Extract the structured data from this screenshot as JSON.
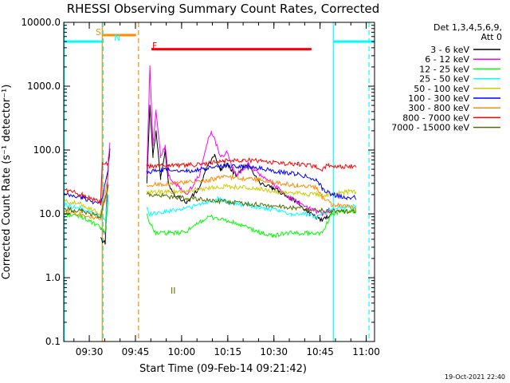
{
  "chart_data": {
    "type": "line",
    "title": "RHESSI Observing Summary Count Rates, Corrected",
    "xlabel": "Start Time (09-Feb-14 09:21:42)",
    "ylabel": "Corrected Count Rate (s⁻¹ detector⁻¹)",
    "yscale": "log",
    "ylim": [
      0.1,
      10000
    ],
    "xlim_minutes": [
      0,
      101
    ],
    "xticks": [
      {
        "t": 8.3,
        "label": "09:30"
      },
      {
        "t": 23.3,
        "label": "09:45"
      },
      {
        "t": 38.3,
        "label": "10:00"
      },
      {
        "t": 53.3,
        "label": "10:15"
      },
      {
        "t": 68.3,
        "label": "10:30"
      },
      {
        "t": 83.3,
        "label": "10:45"
      },
      {
        "t": 98.3,
        "label": "11:00"
      }
    ],
    "yticks": [
      {
        "v": 0.1,
        "label": "0.1"
      },
      {
        "v": 1,
        "label": "1.0"
      },
      {
        "v": 10,
        "label": "10.0"
      },
      {
        "v": 100,
        "label": "100.0"
      },
      {
        "v": 1000,
        "label": "1000.0"
      },
      {
        "v": 10000,
        "label": "10000.0"
      }
    ],
    "legend_header": [
      "Det 1,3,4,5,6,9,",
      "Att 0"
    ],
    "series": [
      {
        "name": "3 - 6 keV",
        "color": "#000000",
        "pts": [
          [
            12,
            4
          ],
          [
            13.5,
            3.5
          ],
          [
            14.5,
            60
          ],
          [
            15,
            110
          ],
          [
            27,
            30
          ],
          [
            28,
            500
          ],
          [
            29,
            80
          ],
          [
            30,
            200
          ],
          [
            31.5,
            35
          ],
          [
            33,
            100
          ],
          [
            34,
            30
          ],
          [
            36,
            20
          ],
          [
            40,
            15
          ],
          [
            44,
            25
          ],
          [
            47,
            60
          ],
          [
            49,
            80
          ],
          [
            51,
            50
          ],
          [
            53,
            60
          ],
          [
            56,
            40
          ],
          [
            60,
            60
          ],
          [
            64,
            30
          ],
          [
            68,
            25
          ],
          [
            72,
            20
          ],
          [
            76,
            15
          ],
          [
            80,
            10
          ],
          [
            84,
            8
          ],
          [
            87,
            10
          ]
        ]
      },
      {
        "name": "6 - 12 keV",
        "color": "#ff00ff",
        "pts": [
          [
            12,
            6
          ],
          [
            13.5,
            5
          ],
          [
            14.5,
            70
          ],
          [
            15,
            130
          ],
          [
            27,
            40
          ],
          [
            28,
            2000
          ],
          [
            29,
            120
          ],
          [
            30,
            400
          ],
          [
            31.5,
            80
          ],
          [
            33,
            120
          ],
          [
            34,
            40
          ],
          [
            36,
            30
          ],
          [
            40,
            20
          ],
          [
            44,
            40
          ],
          [
            47,
            150
          ],
          [
            48,
            200
          ],
          [
            51,
            80
          ],
          [
            53,
            90
          ],
          [
            56,
            40
          ],
          [
            60,
            60
          ],
          [
            64,
            40
          ],
          [
            68,
            30
          ],
          [
            72,
            20
          ],
          [
            76,
            15
          ],
          [
            80,
            12
          ],
          [
            84,
            10
          ],
          [
            87,
            12
          ]
        ]
      },
      {
        "name": "12 - 25 keV",
        "color": "#00ff00",
        "pts": [
          [
            0,
            10
          ],
          [
            6,
            9
          ],
          [
            12,
            6
          ],
          [
            13.5,
            5
          ],
          [
            14.5,
            20
          ],
          [
            27,
            10
          ],
          [
            28,
            7
          ],
          [
            30,
            5
          ],
          [
            34,
            5
          ],
          [
            38,
            5
          ],
          [
            42,
            6
          ],
          [
            45,
            8
          ],
          [
            48,
            9
          ],
          [
            52,
            8
          ],
          [
            56,
            7
          ],
          [
            60,
            6
          ],
          [
            64,
            5
          ],
          [
            68,
            4.5
          ],
          [
            72,
            5
          ],
          [
            76,
            5
          ],
          [
            80,
            5
          ],
          [
            84,
            5
          ],
          [
            87,
            10
          ],
          [
            92,
            11
          ],
          [
            95,
            11
          ]
        ]
      },
      {
        "name": "25 - 50 keV",
        "color": "#00ffff",
        "pts": [
          [
            0,
            14
          ],
          [
            6,
            12
          ],
          [
            12,
            9
          ],
          [
            13.5,
            8
          ],
          [
            14.5,
            20
          ],
          [
            27,
            12
          ],
          [
            28,
            10
          ],
          [
            34,
            11
          ],
          [
            38,
            12
          ],
          [
            42,
            13
          ],
          [
            46,
            15
          ],
          [
            50,
            17
          ],
          [
            54,
            15
          ],
          [
            58,
            14
          ],
          [
            62,
            13
          ],
          [
            66,
            12
          ],
          [
            70,
            11
          ],
          [
            74,
            10
          ],
          [
            78,
            10
          ],
          [
            82,
            9
          ],
          [
            84,
            10
          ],
          [
            87,
            12
          ],
          [
            92,
            13
          ],
          [
            95,
            13
          ]
        ]
      },
      {
        "name": "50 - 100 keV",
        "color": "#cccc00",
        "pts": [
          [
            0,
            16
          ],
          [
            6,
            14
          ],
          [
            12,
            10
          ],
          [
            14.5,
            25
          ],
          [
            27,
            22
          ],
          [
            34,
            22
          ],
          [
            40,
            23
          ],
          [
            46,
            25
          ],
          [
            52,
            27
          ],
          [
            58,
            26
          ],
          [
            64,
            24
          ],
          [
            70,
            22
          ],
          [
            76,
            21
          ],
          [
            82,
            20
          ],
          [
            84,
            20
          ],
          [
            87,
            20
          ],
          [
            92,
            22
          ],
          [
            95,
            22
          ]
        ]
      },
      {
        "name": "100 - 300 keV",
        "color": "#0000ff",
        "pts": [
          [
            0,
            20
          ],
          [
            6,
            18
          ],
          [
            12,
            14
          ],
          [
            14.5,
            50
          ],
          [
            27,
            45
          ],
          [
            34,
            50
          ],
          [
            40,
            47
          ],
          [
            46,
            50
          ],
          [
            52,
            58
          ],
          [
            58,
            55
          ],
          [
            64,
            52
          ],
          [
            70,
            45
          ],
          [
            76,
            42
          ],
          [
            82,
            35
          ],
          [
            84,
            25
          ],
          [
            87,
            20
          ],
          [
            92,
            18
          ],
          [
            95,
            18
          ]
        ]
      },
      {
        "name": "300 - 800 keV",
        "color": "#ff8c00",
        "pts": [
          [
            0,
            11
          ],
          [
            6,
            10
          ],
          [
            12,
            8
          ],
          [
            14.5,
            40
          ],
          [
            27,
            28
          ],
          [
            34,
            30
          ],
          [
            40,
            31
          ],
          [
            46,
            33
          ],
          [
            52,
            38
          ],
          [
            58,
            36
          ],
          [
            64,
            34
          ],
          [
            70,
            30
          ],
          [
            76,
            28
          ],
          [
            82,
            26
          ],
          [
            84,
            18
          ],
          [
            87,
            14
          ],
          [
            92,
            13
          ],
          [
            95,
            12
          ]
        ]
      },
      {
        "name": "800 - 7000 keV",
        "color": "#ff0000",
        "pts": [
          [
            0,
            24
          ],
          [
            6,
            20
          ],
          [
            12,
            15
          ],
          [
            12.5,
            60
          ],
          [
            14.5,
            60
          ],
          [
            27,
            55
          ],
          [
            34,
            58
          ],
          [
            40,
            58
          ],
          [
            46,
            60
          ],
          [
            52,
            68
          ],
          [
            58,
            70
          ],
          [
            64,
            68
          ],
          [
            70,
            62
          ],
          [
            76,
            60
          ],
          [
            82,
            55
          ],
          [
            84,
            50
          ],
          [
            86,
            58
          ],
          [
            90,
            55
          ],
          [
            95,
            55
          ]
        ]
      },
      {
        "name": "7000 - 15000 keV",
        "color": "#556b00",
        "pts": [
          [
            0,
            12
          ],
          [
            6,
            11
          ],
          [
            12,
            9
          ],
          [
            14.5,
            30
          ],
          [
            27,
            20
          ],
          [
            87,
            11
          ],
          [
            95,
            11
          ]
        ]
      }
    ],
    "annotations": [
      {
        "label": "S",
        "color": "#ff8c00"
      },
      {
        "label": "N",
        "color": "#00ffff"
      },
      {
        "label": "F",
        "color": "#ff0000"
      },
      {
        "label": "II",
        "color": "#6b6b00"
      }
    ],
    "bars": [
      {
        "name": "saa",
        "color": "#ff8c00",
        "t": [
          12.5,
          23.5
        ],
        "y": 6300
      },
      {
        "name": "night-left",
        "color": "#00ffff",
        "t": [
          0,
          12.5
        ],
        "y": 5000
      },
      {
        "name": "night-right",
        "color": "#00ffff",
        "t": [
          87.5,
          101
        ],
        "y": 5000
      },
      {
        "name": "flare",
        "color": "#ff0000",
        "t": [
          28.5,
          80.5
        ],
        "y": 3800
      }
    ],
    "vlines": [
      {
        "t": 12.8,
        "color": "#00ffff",
        "style": "dashed"
      },
      {
        "t": 24.3,
        "color": "#ff8c00",
        "style": "dashed"
      },
      {
        "t": 87.6,
        "color": "#00ffff",
        "style": "solid"
      },
      {
        "t": 99.2,
        "color": "#00ffff",
        "style": "dashed"
      },
      {
        "t": 0.2,
        "color": "#00ffff",
        "style": "solid"
      },
      {
        "t": 12.5,
        "color": "#ff8c00",
        "style": "solid"
      }
    ]
  },
  "footer": {
    "timestamp": "19-Oct-2021 22:40"
  }
}
